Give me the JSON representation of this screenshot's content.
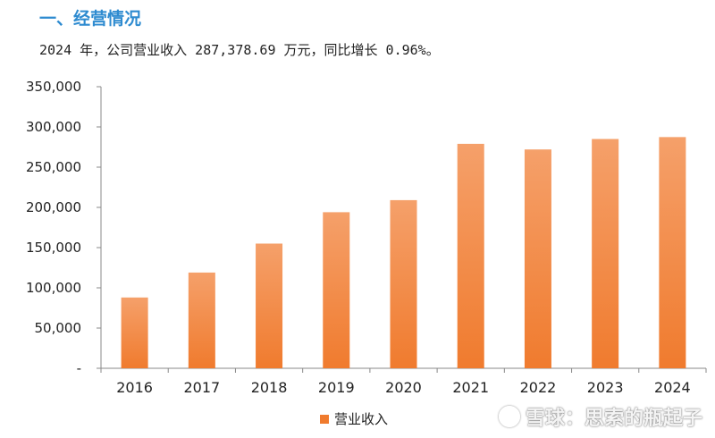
{
  "header": {
    "section_title": "一、经营情况",
    "summary": "2024 年，公司营业收入 287,378.69 万元，同比增长 0.96%。"
  },
  "watermark": {
    "text": "雪球：思索的瓶起子"
  },
  "colors": {
    "bar": "#f07b2e",
    "bar_highlight": "#f5a06a",
    "axis": "#888888",
    "title": "#2e8bd0"
  },
  "chart_data": {
    "type": "bar",
    "categories": [
      "2016",
      "2017",
      "2018",
      "2019",
      "2020",
      "2021",
      "2022",
      "2023",
      "2024"
    ],
    "series": [
      {
        "name": "营业收入",
        "values": [
          88000,
          119000,
          155000,
          194000,
          209000,
          279000,
          272000,
          285000,
          287378.69
        ]
      }
    ],
    "ylim": [
      0,
      350000
    ],
    "yticks": [
      "-",
      "50,000",
      "100,000",
      "150,000",
      "200,000",
      "250,000",
      "300,000",
      "350,000"
    ],
    "grid": false,
    "legend": "bottom"
  }
}
